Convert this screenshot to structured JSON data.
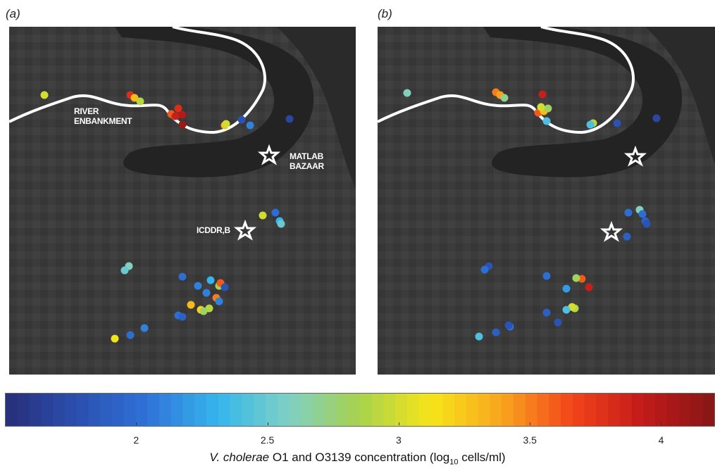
{
  "panels": [
    {
      "label": "(a)",
      "labels": {
        "river": [
          "RIVER",
          "ENBANKMENT"
        ],
        "bazaar": [
          "MATLAB",
          "BAZAAR"
        ],
        "icddrb": "ICDDR,B"
      }
    },
    {
      "label": "(b)"
    }
  ],
  "colorbar": {
    "ticks": [
      "2",
      "2.5",
      "3",
      "3.5",
      "4"
    ],
    "tick_values": [
      2,
      2.5,
      3,
      3.5,
      4
    ],
    "range": [
      1.5,
      4.2
    ],
    "colormap": [
      "#282e78",
      "#2b4fb0",
      "#2f72d8",
      "#35b6ec",
      "#7fd0c4",
      "#a8d24b",
      "#f6e51a",
      "#f8a51e",
      "#f2431a",
      "#c21a1a",
      "#861616"
    ]
  },
  "axis_title": {
    "species": "V. cholerae",
    "text_before_sub": " O1 and O3139 concentration (log",
    "sub": "10",
    "text_after_sub": " cells/ml)"
  },
  "chart_data": {
    "type": "scatter",
    "color_variable": "V. cholerae O1 and O3139 concentration (log10 cells/ml)",
    "color_range": [
      1.5,
      4.2
    ],
    "panels": [
      {
        "label": "(a)",
        "landmarks": [
          "RIVER ENBANKMENT",
          "MATLAB BAZAAR",
          "ICDDR,B"
        ],
        "points": [
          {
            "c": 3.0
          },
          {
            "c": 3.8
          },
          {
            "c": 3.3
          },
          {
            "c": 2.9
          },
          {
            "c": 3.6
          },
          {
            "c": 3.9
          },
          {
            "c": 4.0
          },
          {
            "c": 3.8
          },
          {
            "c": 4.1
          },
          {
            "c": 3.3
          },
          {
            "c": 3.0
          },
          {
            "c": 1.8
          },
          {
            "c": 2.1
          },
          {
            "c": 1.7
          },
          {
            "c": 3.0
          },
          {
            "c": 2.0
          },
          {
            "c": 2.3
          },
          {
            "c": 2.5
          },
          {
            "c": 2.6
          },
          {
            "c": 2.5
          },
          {
            "c": 2.0
          },
          {
            "c": 2.1
          },
          {
            "c": 2.1
          },
          {
            "c": 2.3
          },
          {
            "c": 2.8
          },
          {
            "c": 3.6
          },
          {
            "c": 3.5
          },
          {
            "c": 2.1
          },
          {
            "c": 1.8
          },
          {
            "c": 3.3
          },
          {
            "c": 3.2
          },
          {
            "c": 2.9
          },
          {
            "c": 2.8
          },
          {
            "c": 2.0
          },
          {
            "c": 1.9
          },
          {
            "c": 3.1
          },
          {
            "c": 2.0
          },
          {
            "c": 2.1
          }
        ]
      },
      {
        "label": "(b)",
        "points": [
          {
            "c": 2.6
          },
          {
            "c": 3.5
          },
          {
            "c": 3.4
          },
          {
            "c": 2.7
          },
          {
            "c": 3.6
          },
          {
            "c": 3.3
          },
          {
            "c": 2.8
          },
          {
            "c": 3.0
          },
          {
            "c": 3.9
          },
          {
            "c": 2.4
          },
          {
            "c": 2.9
          },
          {
            "c": 2.4
          },
          {
            "c": 1.8
          },
          {
            "c": 1.7
          },
          {
            "c": 2.0
          },
          {
            "c": 2.6
          },
          {
            "c": 2.0
          },
          {
            "c": 1.9
          },
          {
            "c": 1.8
          },
          {
            "c": 1.9
          },
          {
            "c": 1.8
          },
          {
            "c": 2.0
          },
          {
            "c": 2.0
          },
          {
            "c": 3.6
          },
          {
            "c": 3.9
          },
          {
            "c": 2.2
          },
          {
            "c": 2.8
          },
          {
            "c": 2.9
          },
          {
            "c": 3.0
          },
          {
            "c": 2.4
          },
          {
            "c": 1.9
          },
          {
            "c": 1.8
          },
          {
            "c": 2.4
          },
          {
            "c": 1.9
          },
          {
            "c": 2.0
          },
          {
            "c": 1.8
          }
        ]
      }
    ]
  }
}
